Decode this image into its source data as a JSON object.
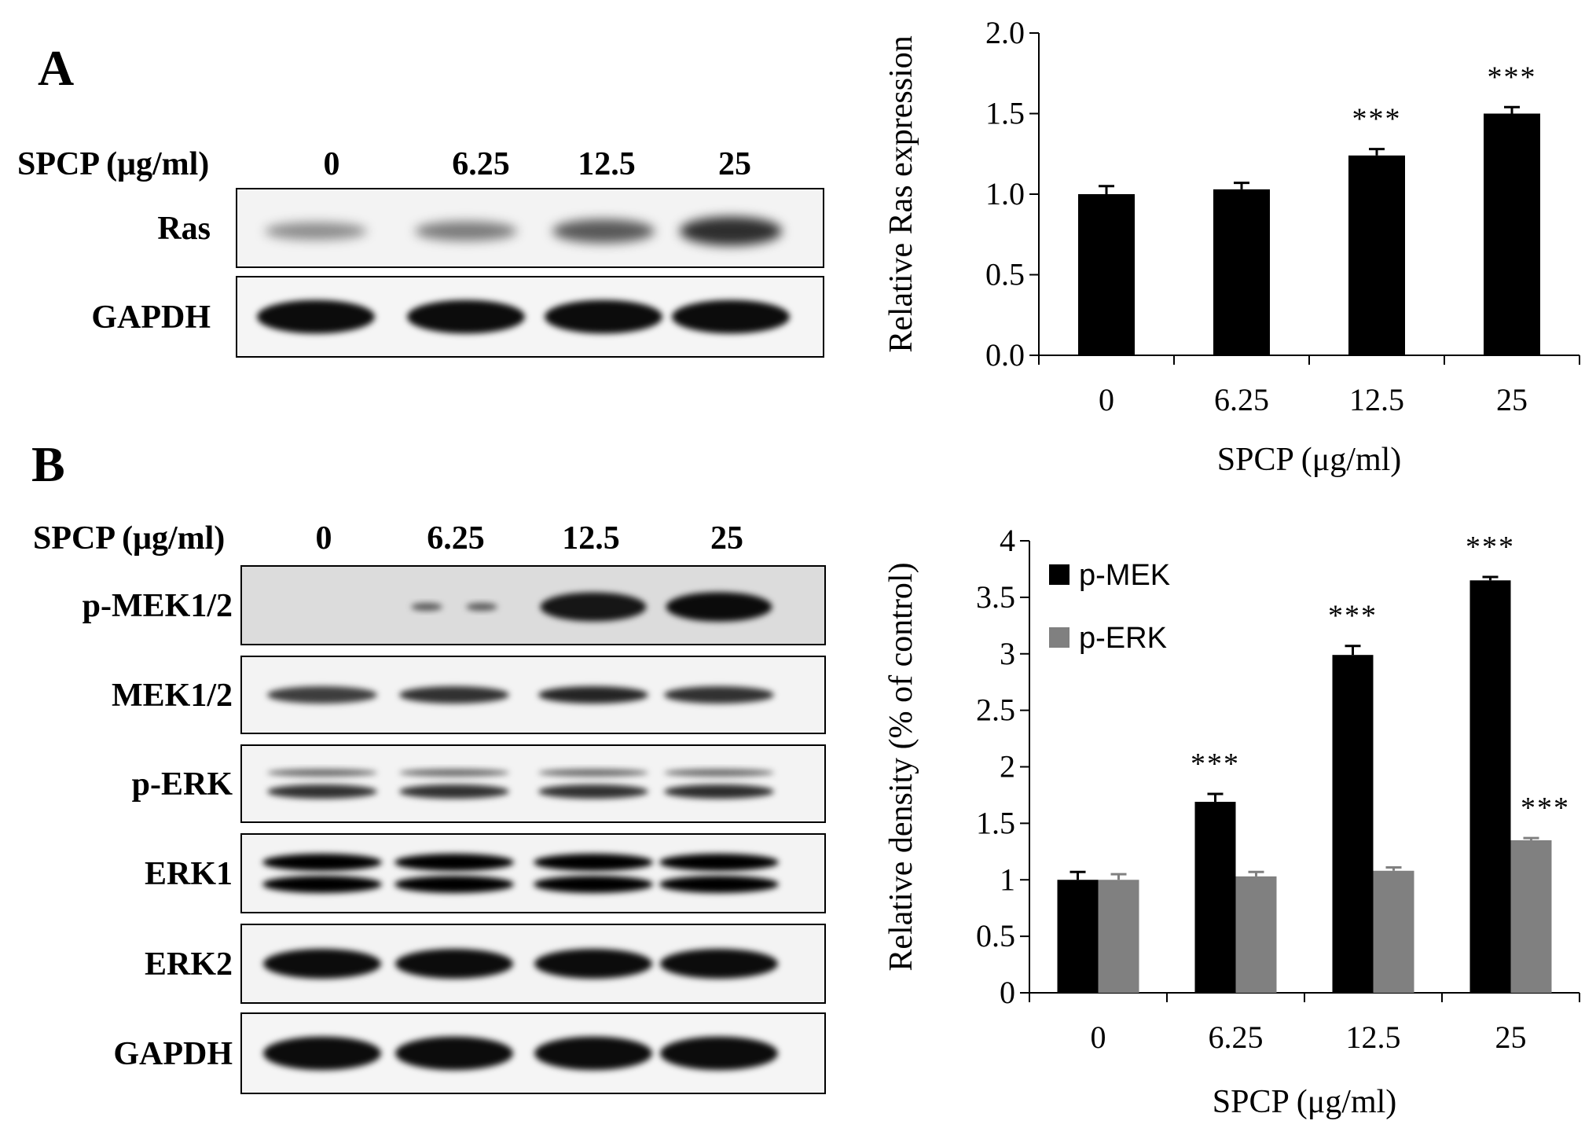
{
  "panelA": {
    "letter": "A",
    "lane_header": "SPCP (μg/ml)",
    "lanes": [
      "0",
      "6.25",
      "12.5",
      "25"
    ],
    "blots": [
      {
        "label": "Ras",
        "intensity": [
          0.25,
          0.35,
          0.55,
          0.8
        ],
        "style": "ras"
      },
      {
        "label": "GAPDH",
        "intensity": [
          0.95,
          0.95,
          0.95,
          0.95
        ],
        "style": "gapdh"
      }
    ]
  },
  "panelB": {
    "letter": "B",
    "lane_header": "SPCP (μg/ml)",
    "lanes": [
      "0",
      "6.25",
      "12.5",
      "25"
    ],
    "blots": [
      {
        "label": "p-MEK1/2",
        "intensity": [
          0.0,
          0.25,
          0.9,
          0.95
        ],
        "style": "pmek"
      },
      {
        "label": "MEK1/2",
        "intensity": [
          0.75,
          0.8,
          0.85,
          0.8
        ],
        "style": "mek"
      },
      {
        "label": "p-ERK",
        "intensity": [
          0.8,
          0.8,
          0.8,
          0.82
        ],
        "style": "perk"
      },
      {
        "label": "ERK1",
        "intensity": [
          1,
          1,
          1,
          1
        ],
        "style": "erk1"
      },
      {
        "label": "ERK2",
        "intensity": [
          0.95,
          0.95,
          0.95,
          0.95
        ],
        "style": "erk2"
      },
      {
        "label": "GAPDH",
        "intensity": [
          0.97,
          0.97,
          0.97,
          0.97
        ],
        "style": "gapdh"
      }
    ]
  },
  "chart_data": [
    {
      "type": "bar",
      "title": "",
      "xlabel": "SPCP (μg/ml)",
      "ylabel": "Relative Ras expression",
      "categories": [
        "0",
        "6.25",
        "12.5",
        "25"
      ],
      "ylim": [
        0,
        2.0
      ],
      "yticks": [
        "0.0",
        "0.5",
        "1.0",
        "1.5",
        "2.0"
      ],
      "grid": false,
      "series": [
        {
          "values": [
            1.0,
            1.03,
            1.24,
            1.5
          ],
          "errors": [
            0.05,
            0.04,
            0.04,
            0.04
          ],
          "color": "#000000",
          "significance": [
            "",
            "",
            "***",
            "***"
          ]
        }
      ]
    },
    {
      "type": "bar",
      "title": "",
      "xlabel": "SPCP (μg/ml)",
      "ylabel": "Relative density (% of control)",
      "categories": [
        "0",
        "6.25",
        "12.5",
        "25"
      ],
      "ylim": [
        0,
        4
      ],
      "yticks": [
        "0",
        "0.5",
        "1",
        "1.5",
        "2",
        "2.5",
        "3",
        "3.5",
        "4"
      ],
      "grid": false,
      "legend_position": "top-left",
      "series": [
        {
          "name": "p-MEK",
          "values": [
            1.0,
            1.69,
            2.99,
            3.65
          ],
          "errors": [
            0.07,
            0.07,
            0.08,
            0.03
          ],
          "color": "#000000",
          "significance": [
            "",
            "***",
            "***",
            "***"
          ]
        },
        {
          "name": "p-ERK",
          "values": [
            1.0,
            1.03,
            1.08,
            1.35
          ],
          "errors": [
            0.05,
            0.04,
            0.03,
            0.02
          ],
          "color": "#808080",
          "significance": [
            "",
            "",
            "",
            "***"
          ]
        }
      ]
    }
  ]
}
